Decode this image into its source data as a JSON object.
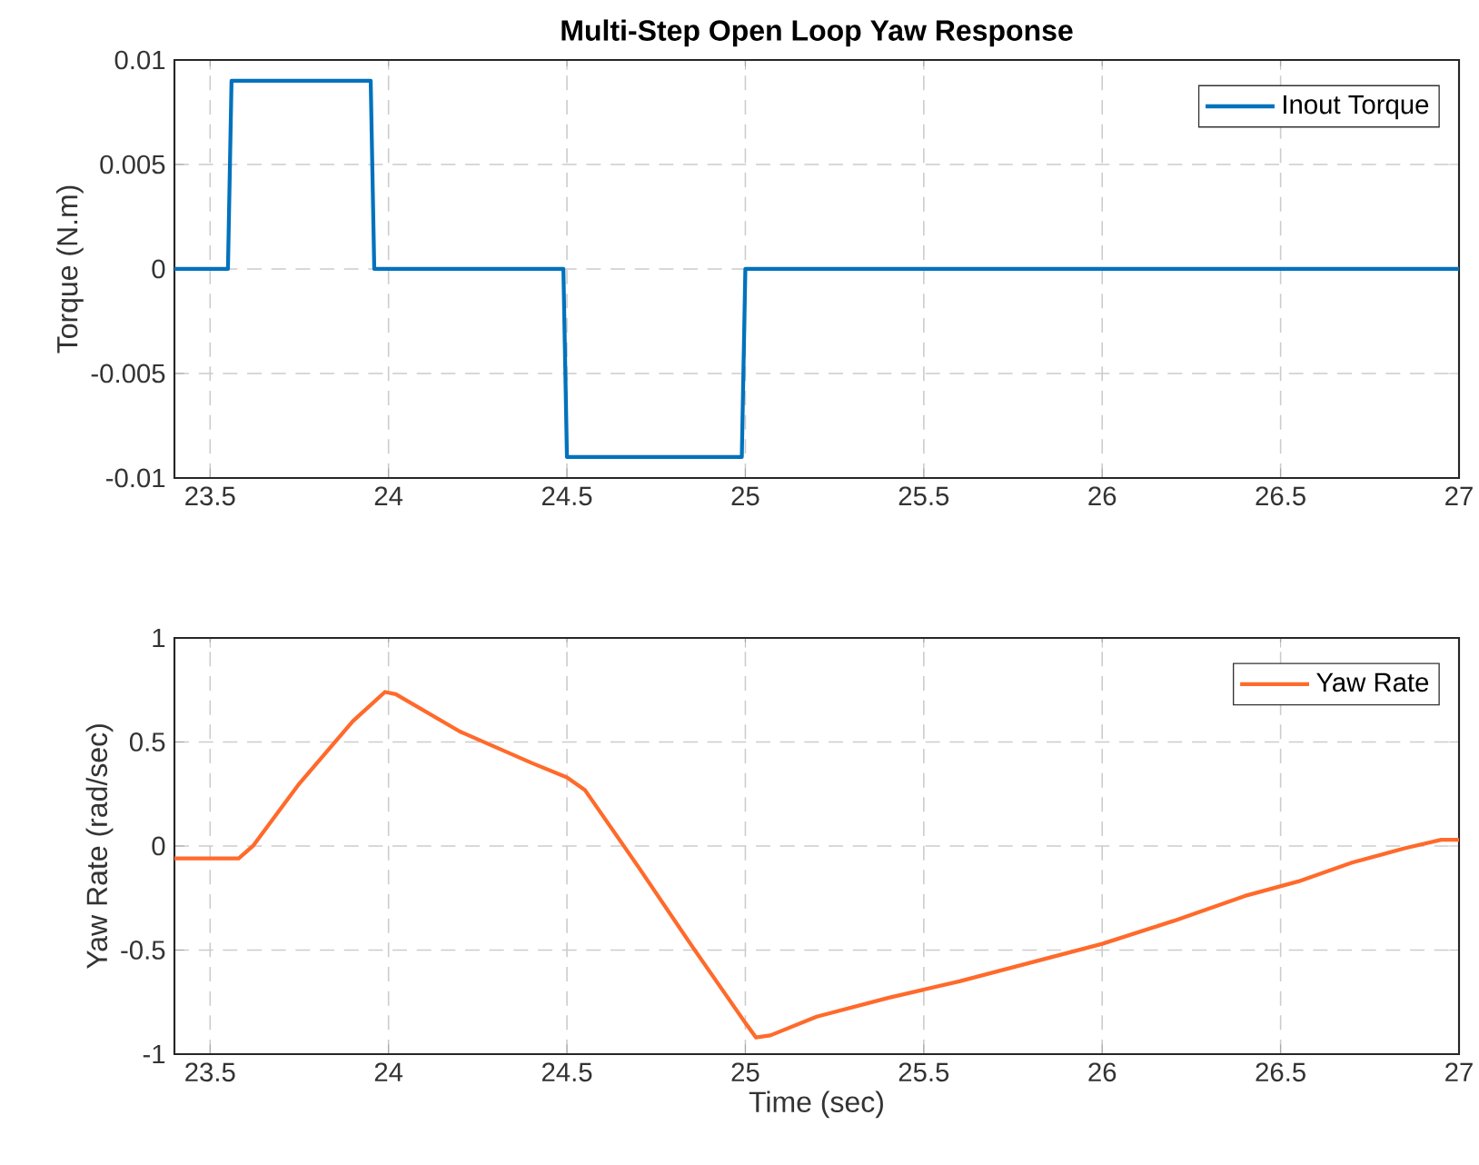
{
  "chart_data": [
    {
      "type": "line",
      "title": "Multi-Step Open Loop Yaw Response",
      "ylabel": "Torque (N.m)",
      "xlim": [
        23.4,
        27
      ],
      "xticks": [
        23.5,
        24,
        24.5,
        25,
        25.5,
        26,
        26.5,
        27
      ],
      "ylim": [
        -0.01,
        0.01
      ],
      "yticks": [
        -0.01,
        -0.005,
        0,
        0.005,
        0.01
      ],
      "grid": true,
      "legend": "top right",
      "line_style": "solid",
      "marker": "none",
      "series": [
        {
          "name": "Inout Torque",
          "color": "#0072bd",
          "x": [
            23.4,
            23.55,
            23.56,
            23.95,
            23.96,
            24.49,
            24.5,
            24.99,
            25.0,
            27
          ],
          "values": [
            0,
            0,
            0.009,
            0.009,
            0,
            0,
            -0.009,
            -0.009,
            0,
            0
          ]
        }
      ]
    },
    {
      "type": "line",
      "xlabel": "Time (sec)",
      "ylabel": "Yaw Rate (rad/sec)",
      "xlim": [
        23.4,
        27
      ],
      "xticks": [
        23.5,
        24,
        24.5,
        25,
        25.5,
        26,
        26.5,
        27
      ],
      "ylim": [
        -1,
        1
      ],
      "yticks": [
        -1,
        -0.5,
        0,
        0.5,
        1
      ],
      "grid": true,
      "legend": "top right",
      "line_style": "solid",
      "marker": "none",
      "series": [
        {
          "name": "Yaw Rate",
          "color": "#ff6a2b",
          "x": [
            23.4,
            23.58,
            23.62,
            23.75,
            23.9,
            23.99,
            24.02,
            24.2,
            24.4,
            24.5,
            24.55,
            24.7,
            24.85,
            25.0,
            25.03,
            25.07,
            25.2,
            25.4,
            25.6,
            25.8,
            26.0,
            26.2,
            26.4,
            26.55,
            26.7,
            26.85,
            26.95,
            27
          ],
          "values": [
            -0.06,
            -0.06,
            0.0,
            0.3,
            0.6,
            0.74,
            0.73,
            0.55,
            0.4,
            0.33,
            0.27,
            -0.1,
            -0.48,
            -0.85,
            -0.92,
            -0.91,
            -0.82,
            -0.73,
            -0.65,
            -0.56,
            -0.47,
            -0.36,
            -0.24,
            -0.17,
            -0.08,
            -0.01,
            0.03,
            0.03
          ]
        }
      ]
    }
  ]
}
